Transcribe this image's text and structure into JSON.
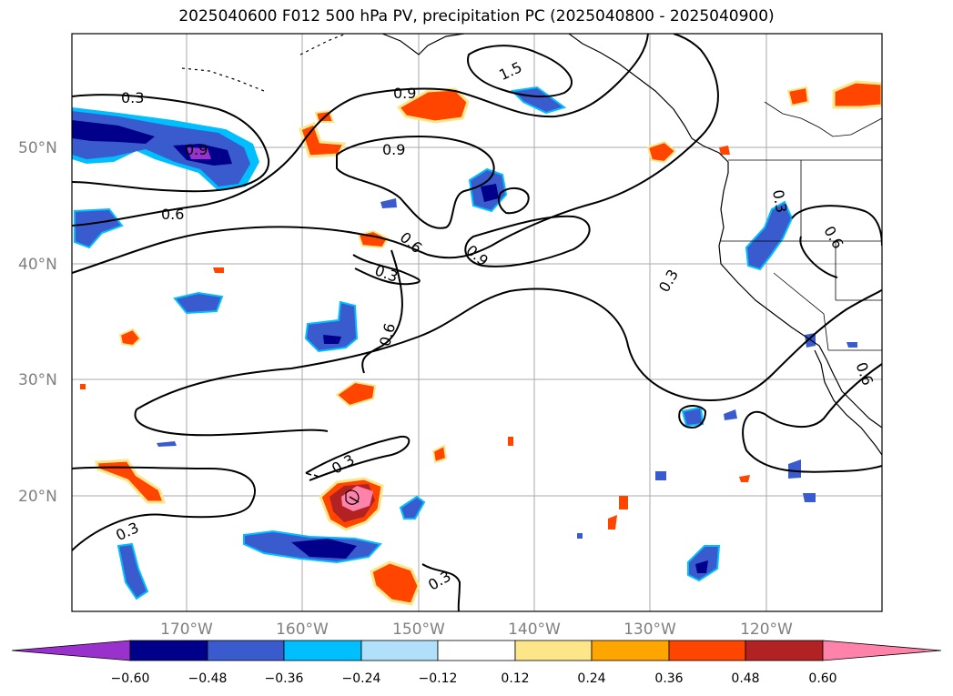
{
  "title": "2025040600 F012 500 hPa PV, precipitation PC (2025040800 - 2025040900)",
  "map": {
    "lat_labels": [
      "50°N",
      "40°N",
      "30°N",
      "20°N"
    ],
    "lon_labels": [
      "170°W",
      "160°W",
      "150°W",
      "140°W",
      "130°W",
      "120°W"
    ],
    "gridline_color": "#aaaaaa",
    "tick_label_color": "#808080"
  },
  "contour_labels": [
    "0.3",
    "0.9",
    "1.5",
    "0.9",
    "0.9",
    "0.6",
    "0.6",
    "0.9",
    "0.3",
    "0.6",
    "0.3",
    "0.3",
    "0.6",
    "0.3",
    "0.3",
    "0.3",
    "0.6"
  ],
  "colorbar": {
    "ticks": [
      "−0.60",
      "−0.48",
      "−0.36",
      "−0.24",
      "−0.12",
      "0.12",
      "0.24",
      "0.36",
      "0.48",
      "0.60"
    ],
    "colors": [
      "#9932cc",
      "#00008b",
      "#3a5bcd",
      "#00bfff",
      "#b0e0fa",
      "#ffffff",
      "#fde68a",
      "#ffa500",
      "#ff4500",
      "#b22222",
      "#ff82ab"
    ]
  }
}
